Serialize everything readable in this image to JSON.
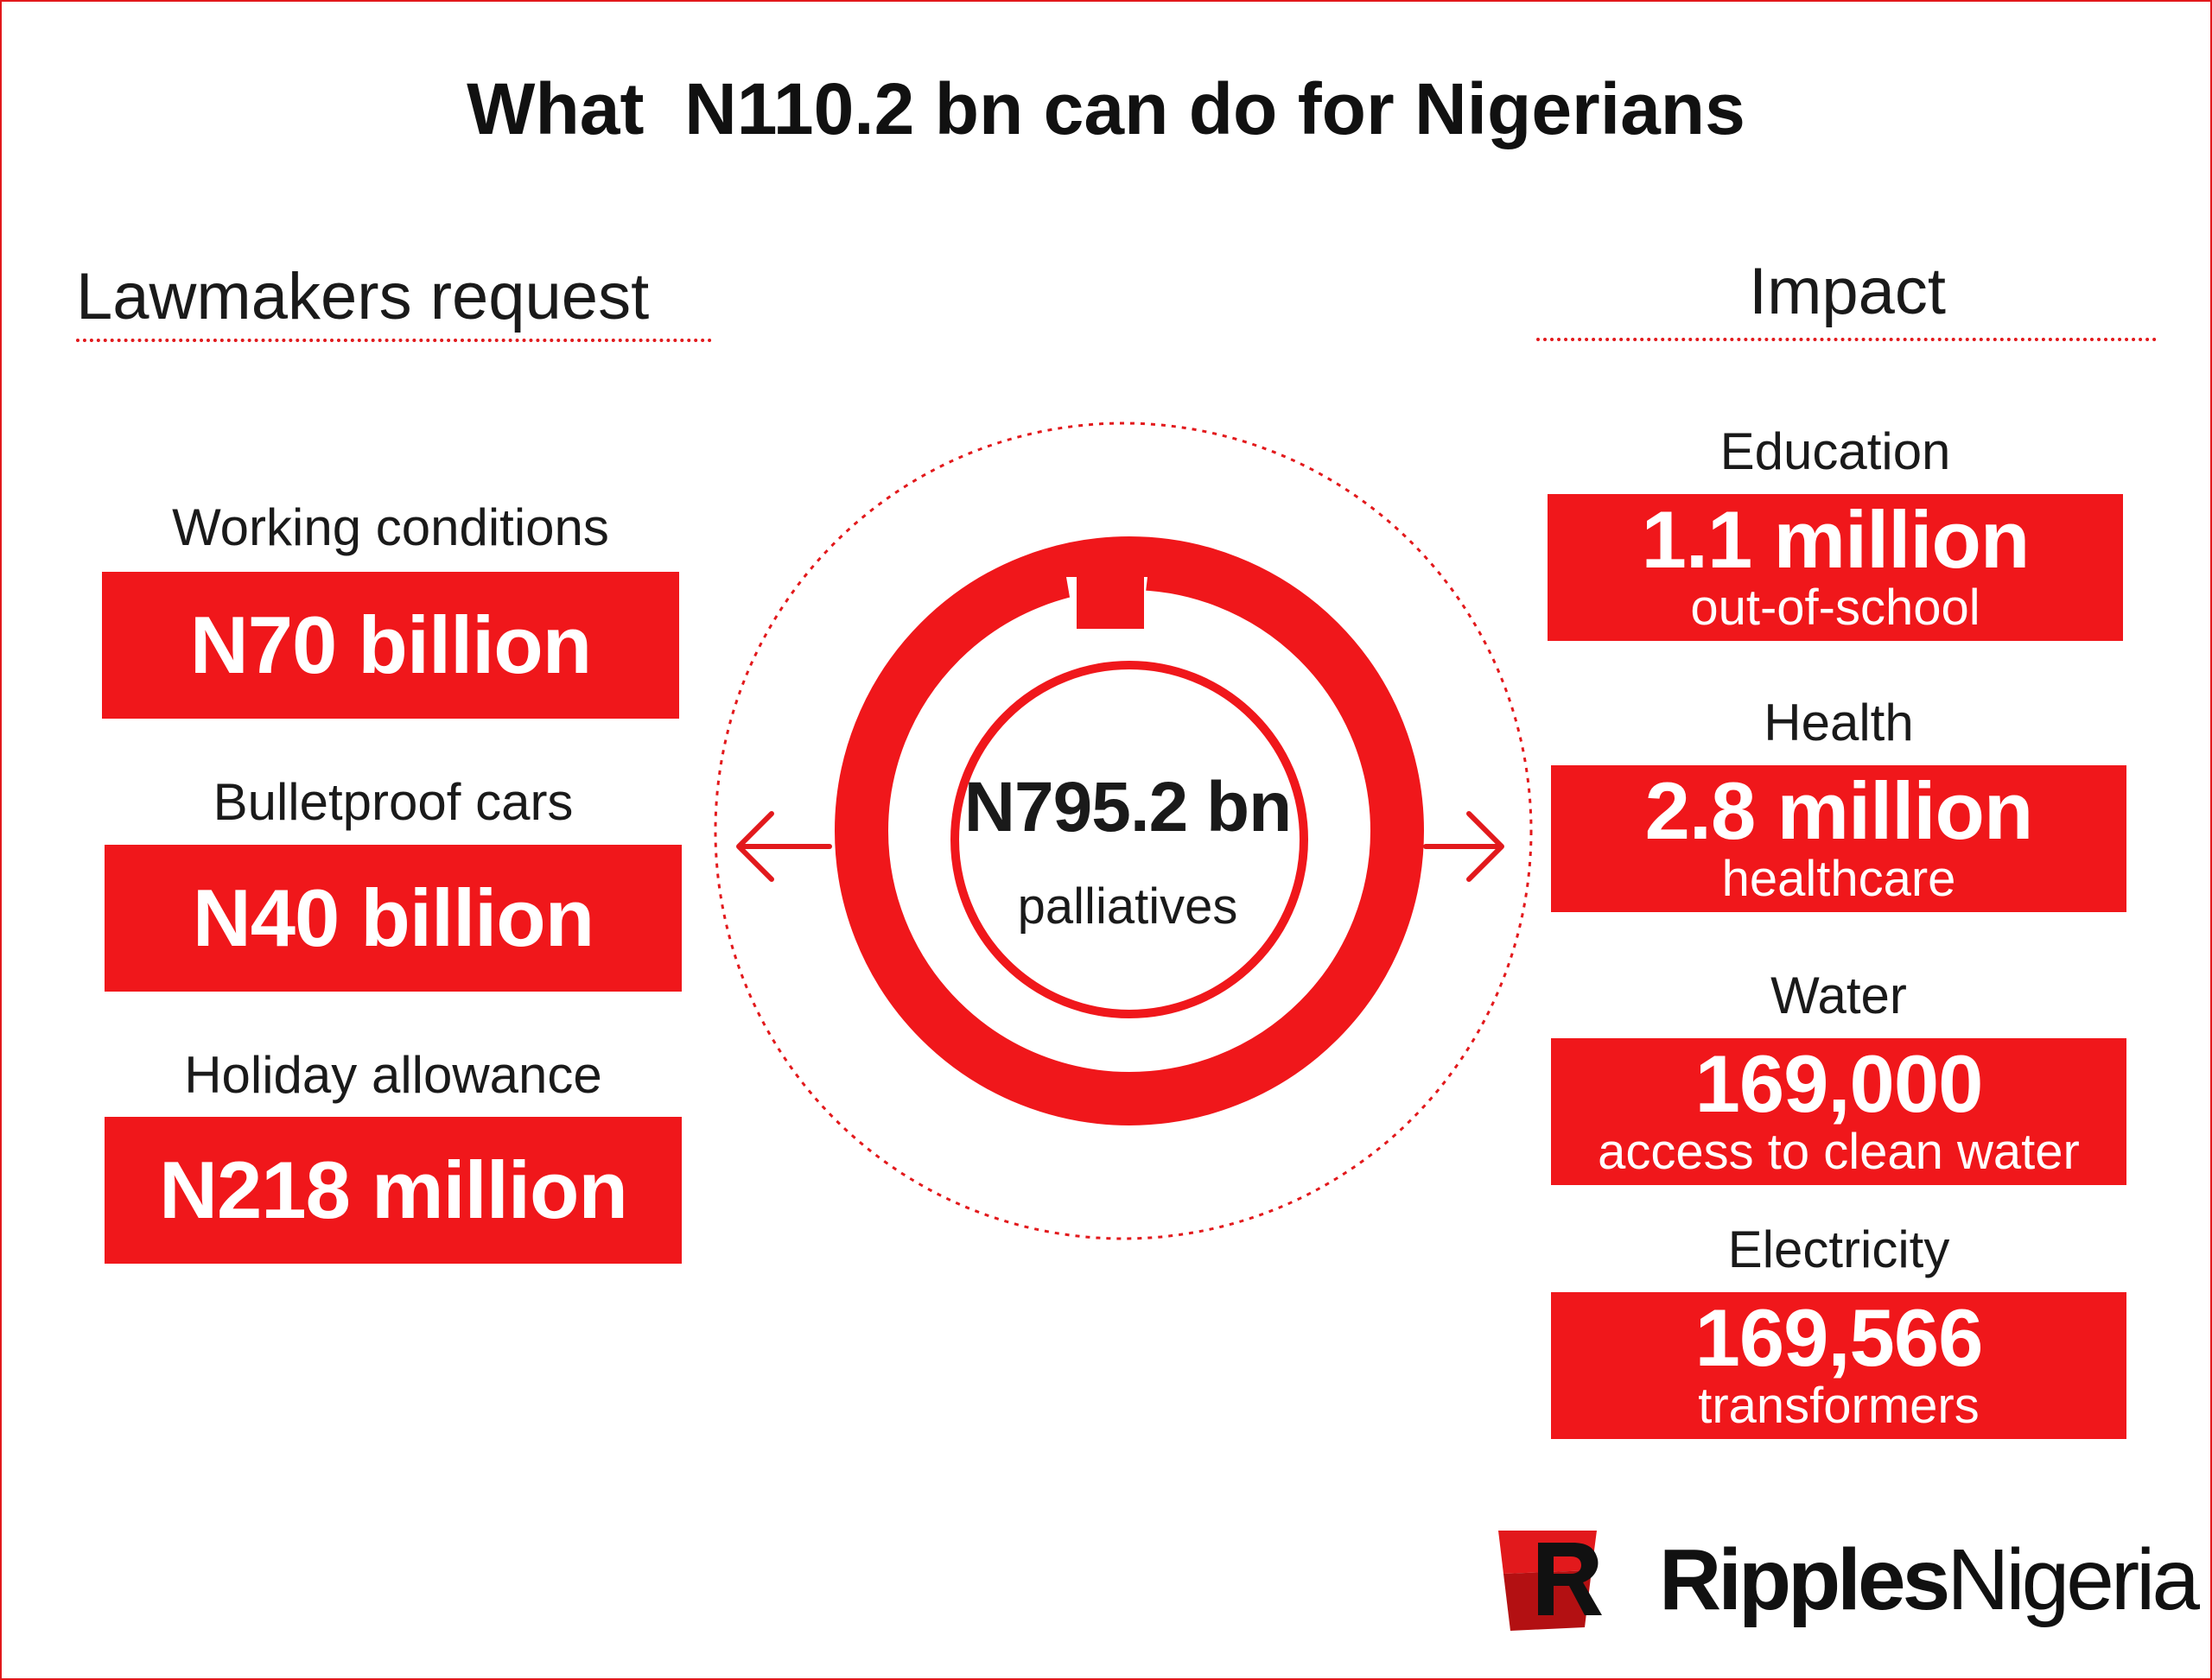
{
  "title": "What  N110.2 bn can do for Nigerians",
  "left": {
    "heading": "Lawmakers request",
    "items": [
      {
        "label": "Working conditions",
        "value": "N70 billion"
      },
      {
        "label": "Bulletproof cars",
        "value": "N40 billion"
      },
      {
        "label": "Holiday allowance",
        "value": "N218 million"
      }
    ]
  },
  "center": {
    "value": "N795.2 bn",
    "label": "palliatives"
  },
  "right": {
    "heading": "Impact",
    "items": [
      {
        "label": "Education",
        "value": "1.1 million",
        "sub": "out-of-school"
      },
      {
        "label": "Health",
        "value": "2.8 million",
        "sub": "healthcare"
      },
      {
        "label": "Water",
        "value": "169,000",
        "sub": "access to clean water"
      },
      {
        "label": "Electricity",
        "value": "169,566",
        "sub": "transformers"
      }
    ]
  },
  "logo": {
    "bold": "Ripples",
    "regular": "Nigeria"
  },
  "colors": {
    "accent": "#f0171b",
    "text": "#1a1a1a",
    "background": "#ffffff"
  },
  "icons": [
    "left-arrow-icon",
    "right-arrow-icon",
    "ripples-logo-icon"
  ]
}
